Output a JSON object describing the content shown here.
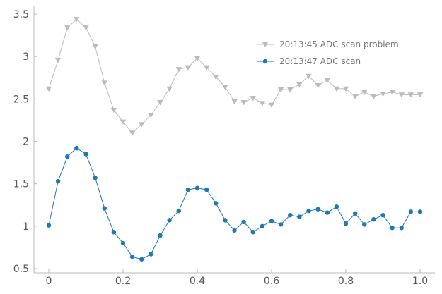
{
  "chart_data": {
    "type": "line",
    "title": "",
    "xlabel": "",
    "ylabel": "",
    "xlim": [
      -0.04,
      1.04
    ],
    "ylim": [
      0.45,
      3.6
    ],
    "xticks": [
      0,
      0.2,
      0.4,
      0.6,
      0.8,
      1.0
    ],
    "xtick_labels": [
      "0",
      "0.2",
      "0.4",
      "0.6",
      "0.8",
      "1.0"
    ],
    "yticks": [
      0.5,
      1,
      1.5,
      2,
      2.5,
      3,
      3.5
    ],
    "ytick_labels": [
      "0.5",
      "1",
      "1.5",
      "2",
      "2.5",
      "3",
      "3.5"
    ],
    "grid": false,
    "legend_position": "top-right",
    "x": [
      0,
      0.025,
      0.05,
      0.075,
      0.1,
      0.125,
      0.15,
      0.175,
      0.2,
      0.225,
      0.25,
      0.275,
      0.3,
      0.325,
      0.35,
      0.375,
      0.4,
      0.425,
      0.45,
      0.475,
      0.5,
      0.525,
      0.55,
      0.575,
      0.6,
      0.625,
      0.65,
      0.675,
      0.7,
      0.725,
      0.75,
      0.775,
      0.8,
      0.825,
      0.85,
      0.875,
      0.9,
      0.925,
      0.95,
      0.975,
      1.0
    ],
    "series": [
      {
        "name": "20:13:45 ADC scan problem",
        "color": "#bbbbbb",
        "marker": "triangle-down",
        "values": [
          2.62,
          2.96,
          3.34,
          3.44,
          3.34,
          3.12,
          2.69,
          2.37,
          2.23,
          2.1,
          2.2,
          2.31,
          2.46,
          2.62,
          2.85,
          2.87,
          2.98,
          2.87,
          2.76,
          2.64,
          2.47,
          2.46,
          2.51,
          2.45,
          2.43,
          2.61,
          2.61,
          2.67,
          2.77,
          2.66,
          2.72,
          2.62,
          2.62,
          2.53,
          2.58,
          2.53,
          2.56,
          2.58,
          2.55,
          2.55,
          2.55
        ]
      },
      {
        "name": "20:13:47 ADC scan",
        "color": "#1f77b4",
        "marker": "circle",
        "values": [
          1.01,
          1.53,
          1.82,
          1.92,
          1.85,
          1.57,
          1.21,
          0.93,
          0.8,
          0.64,
          0.61,
          0.67,
          0.89,
          1.07,
          1.18,
          1.43,
          1.45,
          1.43,
          1.27,
          1.07,
          0.95,
          1.05,
          0.93,
          1.0,
          1.06,
          1.02,
          1.13,
          1.11,
          1.18,
          1.2,
          1.16,
          1.23,
          1.03,
          1.15,
          1.02,
          1.08,
          1.13,
          0.98,
          0.98,
          1.17,
          1.17
        ]
      }
    ]
  }
}
